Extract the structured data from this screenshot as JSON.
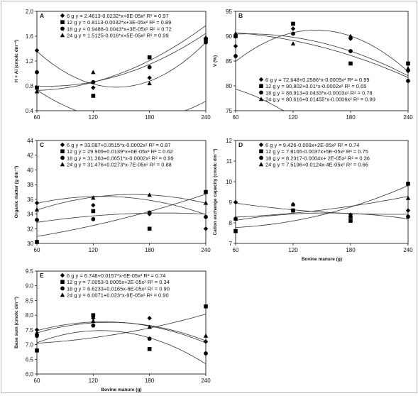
{
  "figure": {
    "colors": {
      "ink": "#000000",
      "curve": "#333333",
      "frame": "#bbbbbb"
    },
    "series_markers": {
      "6 g": "diamond",
      "12 g": "square",
      "18 g": "circle",
      "24 g": "triangle"
    }
  },
  "chart_data": [
    {
      "type": "scatter",
      "panel": "A",
      "xlabel": "",
      "ylabel": "H + Al (cmolc dm⁻³)",
      "x": [
        60,
        120,
        180,
        240
      ],
      "xlim": [
        60,
        240
      ],
      "ylim": [
        0.4,
        2.0
      ],
      "yticks": [
        "0.4",
        "0.8",
        "1.2",
        "1.6",
        "2.0"
      ],
      "legend_position": "top-left",
      "series": [
        {
          "name": "6 g",
          "marker": "diamond",
          "values": [
            1.37,
            0.77,
            0.93,
            1.56
          ],
          "equation": "y = 2.4613-0.0232*x+8E-05x²",
          "r2": "R² = 0.97",
          "coef": [
            2.4613,
            -0.0232,
            8e-05
          ]
        },
        {
          "name": "12 g",
          "marker": "square",
          "values": [
            0.77,
            0.64,
            1.26,
            1.55
          ],
          "equation": "y = 0.8113-0.0032*x+3E-05x²",
          "r2": "R² = 0.89",
          "coef": [
            0.8113,
            -0.0032,
            3e-05
          ]
        },
        {
          "name": "18 g",
          "marker": "circle",
          "values": [
            1.02,
            0.86,
            1.1,
            1.5
          ],
          "equation": "y = 0.9488-0.0043*x+3E-05x²",
          "r2": "R² = 0.72",
          "coef": [
            0.9488,
            -0.0043,
            3e-05
          ]
        },
        {
          "name": "24 g",
          "marker": "triangle",
          "values": [
            0.71,
            1.02,
            0.84,
            1.58
          ],
          "equation": "y = 1.5125-0.016*x+5E-05x²",
          "r2": "R² = 0.99",
          "coef": [
            1.5125,
            -0.016,
            5e-05
          ]
        }
      ]
    },
    {
      "type": "scatter",
      "panel": "B",
      "xlabel": "",
      "ylabel": "V (%)",
      "x": [
        60,
        120,
        180,
        240
      ],
      "xlim": [
        60,
        240
      ],
      "ylim": [
        75,
        95
      ],
      "yticks": [
        "75",
        "80",
        "85",
        "90",
        "95"
      ],
      "legend_position": "bottom-left",
      "series": [
        {
          "name": "6 g",
          "marker": "diamond",
          "values": [
            88.0,
            91.5,
            89.5,
            83.0
          ],
          "equation": "y = 72.648+0.2586*x-0.0009x²",
          "r2": "R² = 0.99",
          "coef": [
            72.648,
            0.2586,
            -0.0009
          ]
        },
        {
          "name": "12 g",
          "marker": "square",
          "values": [
            90.0,
            92.5,
            84.5,
            84.5
          ],
          "equation": "y = 90.802+0.01*x-0.0002x²",
          "r2": "R² = 0.65",
          "coef": [
            90.802,
            0.01,
            -0.0002
          ]
        },
        {
          "name": "18 g",
          "marker": "circle",
          "values": [
            86.0,
            90.5,
            87.0,
            81.0
          ],
          "equation": "y = 88.913+0.0433*x-0.0003x²",
          "r2": "R² = 0.78",
          "coef": [
            88.913,
            0.0433,
            -0.0003
          ]
        },
        {
          "name": "24 g",
          "marker": "triangle",
          "values": [
            90.5,
            88.5,
            90.0,
            83.5
          ],
          "equation": "y = 80.616+0.01455*x-0.0006x²",
          "r2": "R² = 0.99",
          "coef": [
            80.616,
            0.01455,
            -0.0006
          ]
        }
      ]
    },
    {
      "type": "scatter",
      "panel": "C",
      "xlabel": "",
      "ylabel": "Organic matter (g dm⁻³)",
      "x": [
        60,
        120,
        180,
        240
      ],
      "xlim": [
        60,
        240
      ],
      "ylim": [
        30,
        44
      ],
      "yticks": [
        "30",
        "32",
        "34",
        "36",
        "38",
        "40",
        "42",
        "44"
      ],
      "legend_position": "top-left",
      "series": [
        {
          "name": "6 g",
          "marker": "diamond",
          "values": [
            35.5,
            35.2,
            34.0,
            32.0
          ],
          "equation": "y = 33.087+0.0515*x-0.0002x²",
          "r2": "R² = 0.87",
          "coef": [
            33.087,
            0.0515,
            -0.0002
          ]
        },
        {
          "name": "12 g",
          "marker": "square",
          "values": [
            30.2,
            34.4,
            32.0,
            37.0
          ],
          "equation": "y = 29.909+0.0139*x+6E-05x²",
          "r2": "R² = 0.62",
          "coef": [
            29.909,
            0.0139,
            6e-05
          ]
        },
        {
          "name": "18 g",
          "marker": "circle",
          "values": [
            33.2,
            33.3,
            34.2,
            33.6
          ],
          "equation": "y = 31.363+0.0651*x-0.0002x²",
          "r2": "R² = 0.99",
          "coef": [
            31.363,
            0.0651,
            -0.0002
          ]
        },
        {
          "name": "24 g",
          "marker": "triangle",
          "values": [
            34.6,
            36.2,
            36.6,
            35.5
          ],
          "equation": "y = 31.476+0.0273*x-7E-05x²",
          "r2": "R² = 0.88",
          "coef": [
            31.476,
            0.0273,
            -7e-05
          ]
        }
      ]
    },
    {
      "type": "scatter",
      "panel": "D",
      "xlabel": "Bovine manure (g)",
      "ylabel": "Cation exchange capacity (cmolc dm⁻³)",
      "x": [
        60,
        120,
        180,
        240
      ],
      "xlim": [
        60,
        240
      ],
      "ylim": [
        7,
        12
      ],
      "yticks": [
        "7",
        "8",
        "9",
        "10",
        "11",
        "12"
      ],
      "legend_position": "top-left",
      "series": [
        {
          "name": "6 g",
          "marker": "diamond",
          "values": [
            9.0,
            8.9,
            8.4,
            8.6
          ],
          "equation": "y = 9.426-0.009x+2E-05x²",
          "r2": "R² = 0.74",
          "coef": [
            9.426,
            -0.009,
            2e-05
          ]
        },
        {
          "name": "12 g",
          "marker": "square",
          "values": [
            7.6,
            8.6,
            8.1,
            9.9
          ],
          "equation": "y = 7.8165-0.0037x+5E-05x²",
          "r2": "R² = 0.75",
          "coef": [
            7.8165,
            -0.0037,
            5e-05
          ]
        },
        {
          "name": "18 g",
          "marker": "circle",
          "values": [
            8.2,
            8.6,
            8.3,
            8.3
          ],
          "equation": "y = 8.2317-0.0004x+ 2E-05x²",
          "r2": "R² = 0.36",
          "coef": [
            8.2317,
            -0.0004,
            2e-05
          ]
        },
        {
          "name": "24 g",
          "marker": "triangle",
          "values": [
            8.2,
            8.9,
            8.3,
            9.2
          ],
          "equation": "y = 7.5196+0.0124x-4E-05x²",
          "r2": "R² = 0.66",
          "coef": [
            7.5196,
            0.0124,
            -4e-05
          ]
        }
      ]
    },
    {
      "type": "scatter",
      "panel": "E",
      "xlabel": "Bovine manure (g)",
      "ylabel": "Base sum (cmolc dm⁻³)",
      "x": [
        60,
        120,
        180,
        240
      ],
      "xlim": [
        60,
        240
      ],
      "ylim": [
        6.0,
        9.5
      ],
      "yticks": [
        "6.0",
        "6.5",
        "7.0",
        "7.5",
        "8.0",
        "8.5",
        "9.0",
        "9.5"
      ],
      "legend_position": "top-left",
      "series": [
        {
          "name": "6 g",
          "marker": "diamond",
          "values": [
            7.5,
            7.9,
            7.9,
            7.1
          ],
          "equation": "y = 6.748+0.0157*x-6E-05x²",
          "r2": "R² = 0.74",
          "coef": [
            6.748,
            0.0157,
            -6e-05
          ]
        },
        {
          "name": "12 g",
          "marker": "square",
          "values": [
            6.8,
            8.0,
            6.85,
            8.3
          ],
          "equation": "y = 7.0053-0.0005x+2E-05x²",
          "r2": "R² = 0.34",
          "coef": [
            7.0053,
            -0.0005,
            2e-05
          ]
        },
        {
          "name": "18 g",
          "marker": "circle",
          "values": [
            7.3,
            7.65,
            7.2,
            6.7
          ],
          "equation": "y = 6.6233+0.0165x-6E-05x²",
          "r2": "R² = 0.90",
          "coef": [
            6.6233,
            0.0165,
            -6e-05
          ]
        },
        {
          "name": "24 g",
          "marker": "triangle",
          "values": [
            7.4,
            7.8,
            7.6,
            7.3
          ],
          "equation": "y = 6.0071+0.023*x-9E-05x²",
          "r2": "R² = 0.90",
          "coef": [
            6.0071,
            0.023,
            -9e-05
          ]
        }
      ]
    }
  ]
}
